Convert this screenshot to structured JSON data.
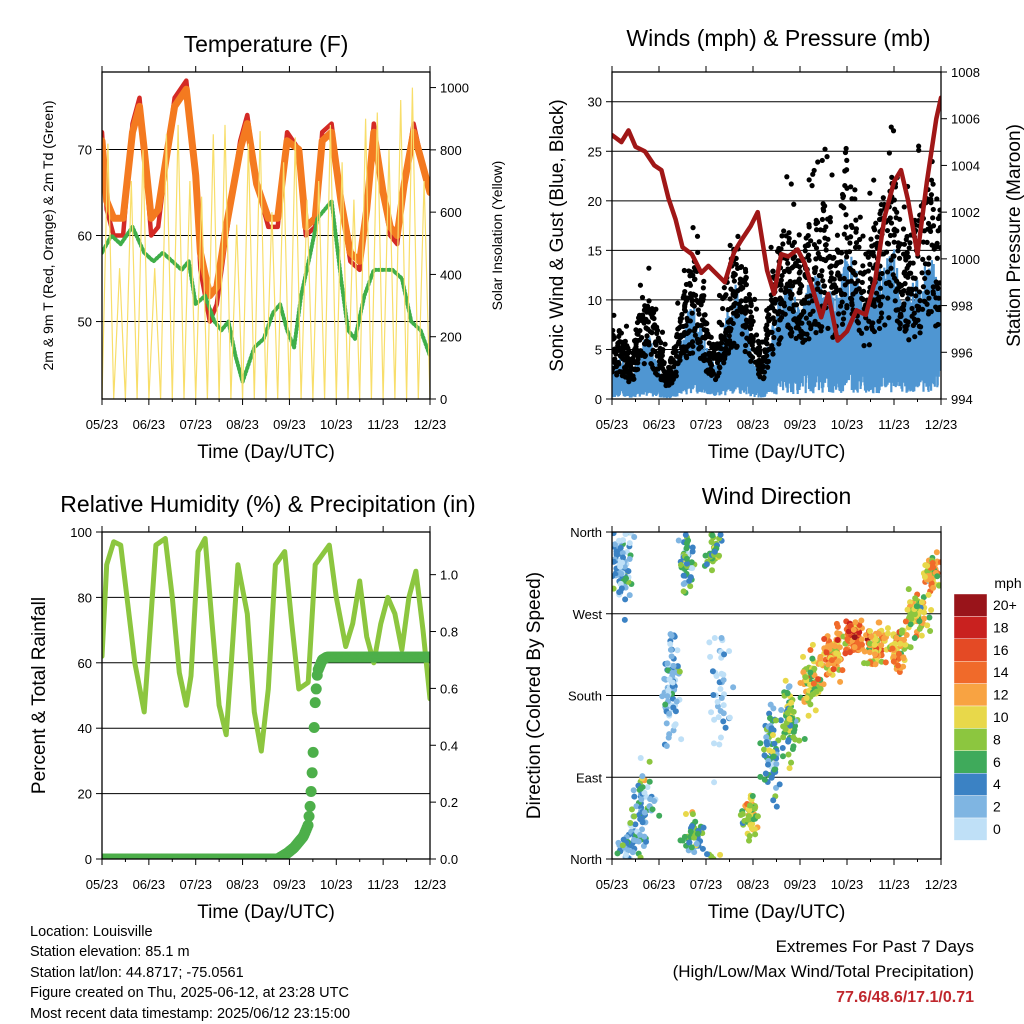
{
  "x_ticks": [
    "05/23",
    "06/23",
    "07/23",
    "08/23",
    "09/23",
    "10/23",
    "11/23",
    "12/23"
  ],
  "colors": {
    "temp2m": "#d42a25",
    "temp9m": "#f47a20",
    "dewpoint": "#3fae49",
    "solar": "#f8de6a",
    "gust": "#000000",
    "wind": "#4f96d2",
    "pressure": "#a01717",
    "rh": "#8cc63f",
    "precip": "#4daf4a"
  },
  "chart_data": [
    {
      "id": "temperature",
      "type": "line",
      "title": "Temperature (F)",
      "xlabel": "Time (Day/UTC)",
      "ylabel": "2m & 9m T (Red, Orange) & 2m Td (Green)",
      "y2label": "Solar Insolation (Yellow)",
      "ylim": [
        41,
        79
      ],
      "y2lim": [
        0,
        1050
      ],
      "yticks": [
        50,
        60,
        70
      ],
      "y2ticks": [
        0,
        200,
        400,
        600,
        800,
        1000
      ],
      "grid": true,
      "series": [
        {
          "axis": "y",
          "color_key": "temp2m",
          "x": [
            0,
            0.2,
            0.5,
            0.9,
            1.3,
            1.6,
            1.8,
            2.1,
            2.4,
            2.8,
            3.1,
            3.6,
            4.0,
            4.2,
            4.6,
            4.9,
            5.3,
            5.9,
            6.2,
            6.6,
            7.1,
            7.5,
            7.9,
            8.4,
            8.7,
            9.1,
            9.4,
            9.8,
            10.2,
            10.6,
            11.0,
            11.3,
            11.6,
            12.0,
            12.3,
            12.6,
            12.9,
            13.3,
            13.7,
            14.0
          ],
          "y": [
            72,
            63,
            60,
            60,
            73,
            76,
            70,
            60,
            61,
            70,
            76,
            78,
            67,
            56,
            50,
            52,
            60,
            71,
            74,
            66,
            61,
            61,
            72,
            70,
            60,
            61,
            72,
            73,
            64,
            57,
            56,
            63,
            73,
            65,
            60,
            59,
            66,
            73,
            68,
            65
          ]
        },
        {
          "axis": "y",
          "color_key": "temp9m",
          "x": [
            0,
            0.2,
            0.5,
            0.9,
            1.3,
            1.6,
            1.8,
            2.1,
            2.4,
            2.8,
            3.1,
            3.6,
            4.0,
            4.2,
            4.6,
            4.9,
            5.3,
            5.9,
            6.2,
            6.6,
            7.1,
            7.5,
            7.9,
            8.4,
            8.7,
            9.1,
            9.4,
            9.8,
            10.2,
            10.6,
            11.0,
            11.3,
            11.6,
            12.0,
            12.3,
            12.6,
            12.9,
            13.3,
            13.7,
            14.0
          ],
          "y": [
            71,
            64,
            62,
            62,
            72,
            75,
            70,
            62,
            63,
            70,
            75,
            77,
            67,
            58,
            53,
            54,
            61,
            70,
            73,
            66,
            62,
            62,
            71,
            70,
            61,
            62,
            71,
            72,
            64,
            58,
            57,
            63,
            72,
            65,
            61,
            60,
            66,
            72,
            68,
            65
          ]
        },
        {
          "axis": "y",
          "color_key": "dewpoint",
          "x": [
            0,
            0.4,
            0.8,
            1.3,
            1.8,
            2.2,
            2.6,
            3.0,
            3.4,
            3.7,
            4.0,
            4.4,
            4.8,
            5.1,
            5.4,
            5.7,
            6.0,
            6.5,
            6.9,
            7.3,
            7.6,
            7.9,
            8.2,
            8.5,
            8.9,
            9.2,
            9.5,
            9.8,
            10.2,
            10.5,
            10.8,
            11.2,
            11.6,
            12.0,
            12.4,
            12.8,
            13.2,
            13.6,
            14.0
          ],
          "y": [
            58,
            60,
            59,
            61,
            58,
            57,
            58,
            57,
            56,
            57,
            52,
            53,
            50,
            49,
            50,
            46,
            43,
            47,
            48,
            51,
            52,
            49,
            47,
            53,
            58,
            62,
            63,
            64,
            55,
            49,
            48,
            53,
            56,
            56,
            56,
            55,
            50,
            49,
            46
          ]
        },
        {
          "axis": "y2",
          "color_key": "solar",
          "x": [
            0.0,
            0.25,
            0.5,
            0.75,
            1.0,
            1.25,
            1.5,
            1.75,
            2.0,
            2.25,
            2.5,
            2.75,
            3.0,
            3.25,
            3.5,
            3.75,
            4.0,
            4.25,
            4.5,
            4.75,
            5.0,
            5.25,
            5.5,
            5.75,
            6.0,
            6.25,
            6.5,
            6.75,
            7.0,
            7.25,
            7.5,
            7.75,
            8.0,
            8.25,
            8.5,
            8.75,
            9.0,
            9.25,
            9.5,
            9.75,
            10.0,
            10.25,
            10.5,
            10.75,
            11.0,
            11.25,
            11.5,
            11.75,
            12.0,
            12.25,
            12.5,
            12.75,
            13.0,
            13.25,
            13.5,
            13.75,
            14.0
          ],
          "y": [
            0,
            820,
            0,
            420,
            0,
            700,
            0,
            800,
            0,
            420,
            0,
            850,
            0,
            880,
            0,
            700,
            0,
            650,
            0,
            850,
            0,
            880,
            0,
            560,
            0,
            820,
            0,
            860,
            0,
            600,
            0,
            760,
            0,
            840,
            0,
            640,
            0,
            700,
            0,
            880,
            0,
            760,
            0,
            640,
            0,
            900,
            0,
            920,
            0,
            800,
            0,
            960,
            0,
            1000,
            0,
            700,
            0
          ]
        }
      ]
    },
    {
      "id": "wind",
      "type": "scatter",
      "title": "Winds (mph) & Pressure (mb)",
      "xlabel": "Time (Day/UTC)",
      "ylabel": "Sonic Wind & Gust (Blue, Black)",
      "y2label": "Station Pressure (Maroon)",
      "ylim": [
        0,
        33
      ],
      "y2lim": [
        994,
        1008
      ],
      "yticks": [
        0,
        5,
        10,
        15,
        20,
        25,
        30
      ],
      "y2ticks": [
        994,
        996,
        998,
        1000,
        1002,
        1004,
        1006,
        1008
      ],
      "grid": true,
      "wind_envelope": {
        "x": [
          0,
          0.4,
          0.8,
          1.2,
          1.6,
          2.0,
          2.4,
          2.8,
          3.2,
          3.6,
          4.0,
          4.4,
          4.8,
          5.2,
          5.6,
          6.0,
          6.4,
          6.8,
          7.2,
          7.6,
          8.0,
          8.4,
          8.8,
          9.2,
          9.6,
          10.0,
          10.4,
          10.8,
          11.2,
          11.6,
          12.0,
          12.4,
          12.8,
          13.2,
          13.6,
          14.0
        ],
        "y": [
          3,
          4,
          2,
          5,
          6,
          3,
          1,
          4,
          8,
          9,
          5,
          3,
          7,
          11,
          9,
          4,
          2,
          7,
          10,
          11,
          8,
          11,
          12,
          10,
          10,
          14,
          12,
          9,
          11,
          13,
          14,
          9,
          11,
          12,
          13,
          11
        ]
      },
      "gust_envelope": {
        "x": [
          0,
          0.4,
          0.8,
          1.2,
          1.6,
          2.0,
          2.4,
          2.8,
          3.2,
          3.6,
          4.0,
          4.4,
          4.8,
          5.2,
          5.6,
          6.0,
          6.4,
          6.8,
          7.2,
          7.6,
          8.0,
          8.4,
          8.8,
          9.2,
          9.6,
          10.0,
          10.4,
          10.8,
          11.2,
          11.6,
          12.0,
          12.4,
          12.8,
          13.2,
          13.6,
          14.0
        ],
        "y": [
          6,
          7,
          4,
          9,
          10,
          6,
          3,
          7,
          12,
          14,
          8,
          5,
          11,
          15,
          14,
          8,
          4,
          12,
          16,
          17,
          13,
          17,
          20,
          18,
          16,
          26,
          20,
          14,
          17,
          20,
          22,
          15,
          17,
          19,
          22,
          18
        ]
      },
      "pressure": {
        "x": [
          0,
          0.4,
          0.7,
          1.0,
          1.4,
          1.8,
          2.1,
          2.4,
          2.7,
          3.0,
          3.4,
          3.8,
          4.1,
          4.5,
          4.8,
          5.2,
          5.5,
          5.9,
          6.2,
          6.6,
          6.9,
          7.2,
          7.5,
          7.9,
          8.2,
          8.6,
          8.9,
          9.2,
          9.6,
          10.0,
          10.4,
          10.8,
          11.2,
          11.6,
          12.0,
          12.3,
          12.6,
          13.0,
          13.4,
          13.8,
          14.0
        ],
        "y": [
          1005.3,
          1005.0,
          1005.5,
          1004.8,
          1004.6,
          1004.0,
          1003.8,
          1002.6,
          1001.7,
          1000.5,
          1000.2,
          999.4,
          999.7,
          999.3,
          999.0,
          1000.3,
          1000.8,
          1001.4,
          1002.0,
          999.5,
          998.5,
          1000.2,
          1000.1,
          1000.4,
          999.8,
          998.5,
          997.5,
          998.5,
          996.5,
          996.9,
          997.8,
          997.6,
          999.1,
          1001.8,
          1003.3,
          1003.8,
          1002.5,
          1000.2,
          1003.3,
          1006.0,
          1006.9
        ]
      }
    },
    {
      "id": "humidity",
      "type": "line",
      "title": "Relative Humidity (%) & Precipitation (in)",
      "xlabel": "Time (Day/UTC)",
      "ylabel": "Percent & Total Rainfall",
      "ylim": [
        0,
        100
      ],
      "y2lim": [
        0,
        1.15
      ],
      "yticks": [
        0,
        20,
        40,
        60,
        80,
        100
      ],
      "y2ticks": [
        0.0,
        0.2,
        0.4,
        0.6,
        0.8,
        1.0
      ],
      "grid": true,
      "series": [
        {
          "axis": "y",
          "name": "RH",
          "color_key": "rh",
          "x": [
            0,
            0.2,
            0.5,
            0.8,
            1.0,
            1.4,
            1.8,
            2.0,
            2.3,
            2.7,
            3.0,
            3.3,
            3.6,
            3.8,
            4.1,
            4.4,
            4.7,
            5.0,
            5.3,
            5.5,
            5.8,
            6.2,
            6.5,
            6.8,
            7.1,
            7.4,
            7.8,
            8.1,
            8.4,
            8.8,
            9.1,
            9.4,
            9.7,
            10.0,
            10.4,
            10.7,
            11.0,
            11.3,
            11.6,
            11.9,
            12.2,
            12.5,
            12.8,
            13.1,
            13.4,
            13.7,
            14.0
          ],
          "y": [
            62,
            90,
            97,
            96,
            84,
            60,
            45,
            65,
            96,
            98,
            80,
            57,
            47,
            56,
            94,
            98,
            72,
            47,
            38,
            58,
            90,
            75,
            45,
            33,
            52,
            90,
            94,
            72,
            52,
            54,
            90,
            93,
            96,
            80,
            65,
            72,
            85,
            68,
            60,
            72,
            80,
            75,
            64,
            80,
            88,
            70,
            49
          ]
        },
        {
          "axis": "y2",
          "name": "Precip",
          "color_key": "precip",
          "x": [
            0,
            7.5,
            7.9,
            8.2,
            8.4,
            8.6,
            8.7,
            8.8,
            8.9,
            9.0,
            9.1,
            9.2,
            9.4,
            9.6,
            9.8,
            10.0,
            12.0,
            14.0
          ],
          "y": [
            0,
            0,
            0.02,
            0.04,
            0.06,
            0.08,
            0.1,
            0.12,
            0.2,
            0.35,
            0.55,
            0.66,
            0.7,
            0.71,
            0.71,
            0.71,
            0.71,
            0.71
          ]
        }
      ]
    },
    {
      "id": "direction",
      "type": "scatter",
      "title": "Wind Direction",
      "xlabel": "Time (Day/UTC)",
      "ylabel": "Direction (Colored By Speed)",
      "ylim": [
        0,
        360
      ],
      "ytick_labels": [
        "North",
        "East",
        "South",
        "West",
        "North"
      ],
      "ytick_values": [
        0,
        90,
        180,
        270,
        360
      ],
      "grid": true,
      "clusters": [
        {
          "x": 0.4,
          "xs": 0.45,
          "y": 320,
          "ys": 30,
          "n": 80,
          "s": 3
        },
        {
          "x": 0.7,
          "xs": 0.45,
          "y": 15,
          "ys": 18,
          "n": 45,
          "s": 3
        },
        {
          "x": 1.3,
          "xs": 0.4,
          "y": 60,
          "ys": 35,
          "n": 60,
          "s": 4
        },
        {
          "x": 2.5,
          "xs": 0.35,
          "y": 190,
          "ys": 45,
          "n": 80,
          "s": 2
        },
        {
          "x": 3.2,
          "xs": 0.3,
          "y": 330,
          "ys": 30,
          "n": 50,
          "s": 5
        },
        {
          "x": 3.5,
          "xs": 0.4,
          "y": 25,
          "ys": 20,
          "n": 45,
          "s": 6
        },
        {
          "x": 4.3,
          "xs": 0.3,
          "y": 340,
          "ys": 20,
          "n": 35,
          "s": 7
        },
        {
          "x": 4.6,
          "xs": 0.5,
          "y": 180,
          "ys": 60,
          "n": 40,
          "s": 1
        },
        {
          "x": 5.9,
          "xs": 0.35,
          "y": 50,
          "ys": 20,
          "n": 60,
          "s": 9
        },
        {
          "x": 6.8,
          "xs": 0.4,
          "y": 120,
          "ys": 45,
          "n": 70,
          "s": 5
        },
        {
          "x": 7.6,
          "xs": 0.4,
          "y": 150,
          "ys": 30,
          "n": 70,
          "s": 7
        },
        {
          "x": 8.5,
          "xs": 0.45,
          "y": 195,
          "ys": 25,
          "n": 80,
          "s": 9
        },
        {
          "x": 9.4,
          "xs": 0.45,
          "y": 225,
          "ys": 20,
          "n": 80,
          "s": 12
        },
        {
          "x": 10.3,
          "xs": 0.45,
          "y": 245,
          "ys": 15,
          "n": 70,
          "s": 14
        },
        {
          "x": 11.2,
          "xs": 0.4,
          "y": 232,
          "ys": 20,
          "n": 70,
          "s": 12
        },
        {
          "x": 12.1,
          "xs": 0.45,
          "y": 230,
          "ys": 18,
          "n": 60,
          "s": 11
        },
        {
          "x": 13.0,
          "xs": 0.4,
          "y": 270,
          "ys": 20,
          "n": 70,
          "s": 9
        },
        {
          "x": 13.6,
          "xs": 0.35,
          "y": 315,
          "ys": 20,
          "n": 60,
          "s": 11
        }
      ],
      "colorbar": {
        "title": "mph",
        "labels": [
          "20+",
          "18",
          "16",
          "14",
          "12",
          "10",
          "8",
          "6",
          "4",
          "2",
          "0"
        ],
        "colors": [
          "#99141a",
          "#c9211f",
          "#e44a25",
          "#f06a2a",
          "#f8a342",
          "#e8d84a",
          "#8cc63f",
          "#3faa5b",
          "#3b82c4",
          "#7fb5e2",
          "#bfe0f7"
        ]
      }
    }
  ],
  "info": {
    "location": "Location: Louisville",
    "elevation": "Station elevation: 85.1 m",
    "latlon": "Station lat/lon: 44.8717; -75.0561",
    "created": "Figure created on Thu, 2025-06-12, at 23:28 UTC",
    "recent": "Most recent data timestamp: 2025/06/12 23:15:00"
  },
  "extremes": {
    "line1": "Extremes For Past 7 Days",
    "line2": "(High/Low/Max Wind/Total Precipitation)",
    "value": "77.6/48.6/17.1/0.71"
  }
}
